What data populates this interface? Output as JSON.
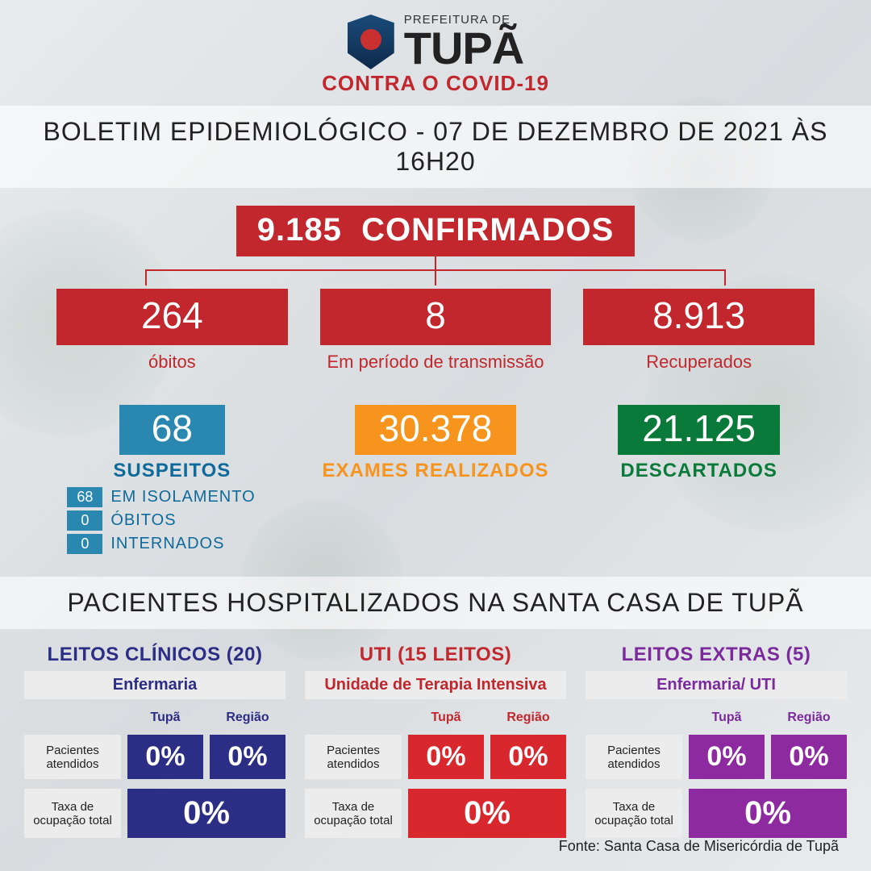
{
  "header": {
    "prefeitura": "PREFEITURA DE",
    "city": "TUPÃ",
    "contra": "CONTRA O COVID-19"
  },
  "bulletin_title": "BOLETIM EPIDEMIOLÓGICO - 07 DE DEZEMBRO DE 2021 ÀS 16H20",
  "confirmed": {
    "value": "9.185",
    "label": "CONFIRMADOS"
  },
  "breakdown": {
    "deaths": {
      "value": "264",
      "label": "óbitos"
    },
    "transmission": {
      "value": "8",
      "label": "Em período de transmissão"
    },
    "recovered": {
      "value": "8.913",
      "label": "Recuperados"
    }
  },
  "suspects": {
    "value": "68",
    "label": "SUSPEITOS",
    "items": [
      {
        "badge": "68",
        "text": "EM ISOLAMENTO"
      },
      {
        "badge": "0",
        "text": "ÓBITOS"
      },
      {
        "badge": "0",
        "text": "INTERNADOS"
      }
    ]
  },
  "exams": {
    "value": "30.378",
    "label": "EXAMES REALIZADOS"
  },
  "discarded": {
    "value": "21.125",
    "label": "DESCARTADOS"
  },
  "hospital_title": "PACIENTES HOSPITALIZADOS NA SANTA CASA DE TUPÃ",
  "hospital": {
    "colheads": {
      "tupa": "Tupã",
      "regiao": "Região"
    },
    "rowlabels": {
      "attended": "Pacientes atendidos",
      "occupancy": "Taxa de ocupação total"
    },
    "cols": [
      {
        "title": "LEITOS CLÍNICOS (20)",
        "subtitle": "Enfermaria",
        "color_bg": "#2b2e84",
        "color_text": "#2b2e84",
        "tupa_pct": "0%",
        "regiao_pct": "0%",
        "total_pct": "0%"
      },
      {
        "title": "UTI (15 LEITOS)",
        "subtitle": "Unidade de Terapia Intensiva",
        "color_bg": "#d9272e",
        "color_text": "#c1272d",
        "tupa_pct": "0%",
        "regiao_pct": "0%",
        "total_pct": "0%"
      },
      {
        "title": "LEITOS EXTRAS (5)",
        "subtitle": "Enfermaria/ UTI",
        "color_bg": "#8e2aa0",
        "color_text": "#7b2a9c",
        "tupa_pct": "0%",
        "regiao_pct": "0%",
        "total_pct": "0%"
      }
    ]
  },
  "source": "Fonte: Santa Casa de Misericórdia de Tupã",
  "colors": {
    "red": "#c1272d",
    "teal": "#2a88b0",
    "teal_text": "#0e6a9a",
    "orange": "#f7941d",
    "green": "#0a7a3a",
    "blue": "#2b2e84",
    "purple": "#8e2aa0",
    "band_bg": "rgba(255,255,255,0.6)",
    "grey_bg": "#ececec"
  }
}
